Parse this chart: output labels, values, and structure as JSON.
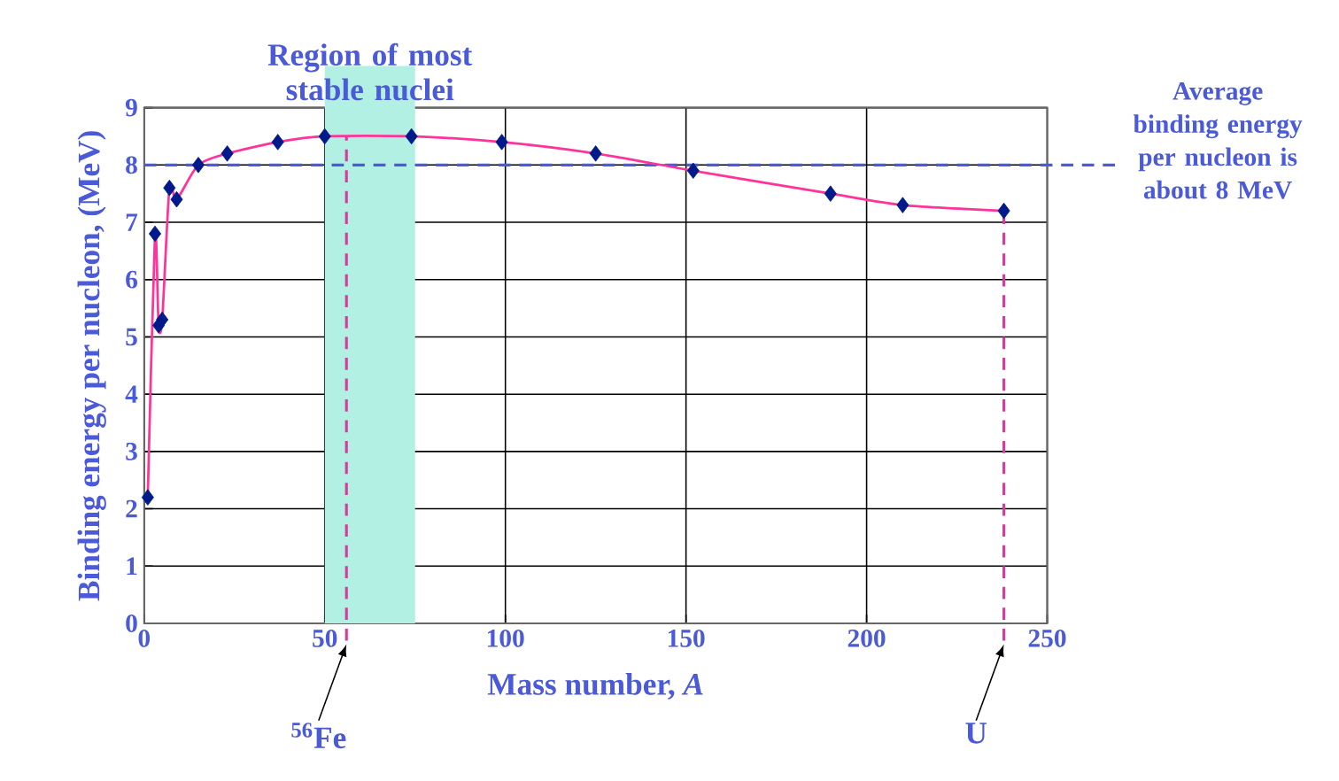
{
  "chart_data": {
    "type": "line",
    "xlabel": "Mass number, *A*",
    "ylabel": "Binding energy per nucleon, (MeV)",
    "x": [
      1,
      3,
      4,
      5,
      7,
      9,
      15,
      23,
      37,
      50,
      74,
      99,
      125,
      152,
      190,
      210,
      238
    ],
    "series": [
      {
        "color": "#ff3399",
        "marker": "none",
        "values": [
          2.2,
          6.8,
          5.2,
          5.3,
          7.6,
          7.4,
          8.0,
          8.2,
          8.4,
          8.5,
          8.5,
          8.4,
          8.2,
          7.9,
          7.5,
          7.3,
          7.2
        ]
      },
      {
        "type": "scatter",
        "color": "#001a8c",
        "marker": "diamond",
        "values": [
          2.2,
          6.8,
          5.2,
          5.3,
          7.6,
          7.4,
          8.0,
          8.2,
          8.4,
          8.5,
          8.5,
          8.4,
          8.2,
          7.9,
          7.5,
          7.3,
          7.2
        ]
      }
    ],
    "xlim": [
      0,
      250
    ],
    "ylim": [
      0,
      9
    ],
    "xticks": [
      0,
      50,
      100,
      150,
      200,
      250
    ],
    "yticks": [
      0,
      1,
      2,
      3,
      4,
      5,
      6,
      7,
      8,
      9
    ],
    "grid": true,
    "bands": [
      {
        "axis": "x",
        "from": 50,
        "to": 75,
        "label": "Region of most stable nuclei",
        "color": "#b3f0e4"
      }
    ],
    "ref_lines": [
      {
        "axis": "y",
        "value": 8,
        "label": "Average binding energy per nucleon is about 8 MeV",
        "color": "#4a5ad8",
        "line_style": "dashed"
      },
      {
        "axis": "x",
        "value": 56,
        "label": "$^{56}$Fe",
        "color": "#d63c9c",
        "line_style": "dashed"
      },
      {
        "axis": "x",
        "value": 238,
        "label": "U",
        "color": "#d63c9c",
        "line_style": "dashed"
      }
    ]
  }
}
